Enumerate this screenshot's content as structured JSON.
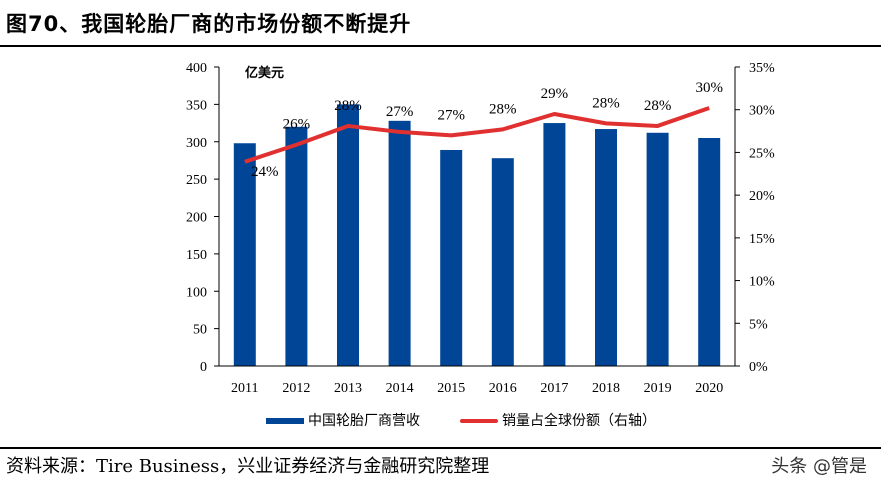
{
  "title": "图70、我国轮胎厂商的市场份额不断提升",
  "source": "资料来源：Tire Business，兴业证券经济与金融研究院整理",
  "watermark": "头条 @管是",
  "chart_data": {
    "type": "bar+line",
    "categories": [
      "2011",
      "2012",
      "2013",
      "2014",
      "2015",
      "2016",
      "2017",
      "2018",
      "2019",
      "2020"
    ],
    "left_axis": {
      "unit_label": "亿美元",
      "ylim": [
        0,
        400
      ],
      "ticks": [
        "0",
        "50",
        "100",
        "150",
        "200",
        "250",
        "300",
        "350",
        "400"
      ]
    },
    "right_axis": {
      "ylim": [
        0,
        35
      ],
      "ticks": [
        "0%",
        "5%",
        "10%",
        "15%",
        "20%",
        "25%",
        "30%",
        "35%"
      ]
    },
    "series": [
      {
        "name": "中国轮胎厂商营收",
        "type": "bar",
        "axis": "left",
        "color": "#004596",
        "values": [
          298,
          320,
          350,
          328,
          289,
          278,
          325,
          317,
          312,
          305
        ]
      },
      {
        "name": "销量占全球份额（右轴）",
        "type": "line",
        "axis": "right",
        "color": "#e03030",
        "values": [
          23.9,
          25.9,
          28.1,
          27.4,
          27.0,
          27.7,
          29.5,
          28.4,
          28.1,
          30.2
        ],
        "labels": [
          "24%",
          "26%",
          "28%",
          "27%",
          "27%",
          "28%",
          "29%",
          "28%",
          "28%",
          "30%"
        ]
      }
    ],
    "grid": false,
    "legend": "bottom"
  }
}
